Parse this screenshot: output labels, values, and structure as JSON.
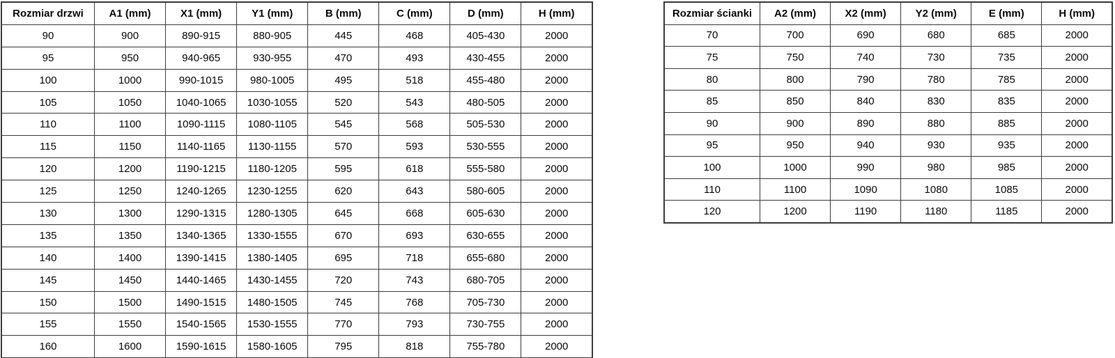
{
  "colors": {
    "background": "#ffffff",
    "border": "#3c3c3c",
    "text": "#0a0a0a"
  },
  "tables": [
    {
      "name": "door-size-table",
      "headers": [
        "Rozmiar drzwi",
        "A1 (mm)",
        "X1 (mm)",
        "Y1 (mm)",
        "B (mm)",
        "C (mm)",
        "D (mm)",
        "H (mm)"
      ],
      "rows": [
        [
          "90",
          "900",
          "890-915",
          "880-905",
          "445",
          "468",
          "405-430",
          "2000"
        ],
        [
          "95",
          "950",
          "940-965",
          "930-955",
          "470",
          "493",
          "430-455",
          "2000"
        ],
        [
          "100",
          "1000",
          "990-1015",
          "980-1005",
          "495",
          "518",
          "455-480",
          "2000"
        ],
        [
          "105",
          "1050",
          "1040-1065",
          "1030-1055",
          "520",
          "543",
          "480-505",
          "2000"
        ],
        [
          "110",
          "1100",
          "1090-1115",
          "1080-1105",
          "545",
          "568",
          "505-530",
          "2000"
        ],
        [
          "115",
          "1150",
          "1140-1165",
          "1130-1155",
          "570",
          "593",
          "530-555",
          "2000"
        ],
        [
          "120",
          "1200",
          "1190-1215",
          "1180-1205",
          "595",
          "618",
          "555-580",
          "2000"
        ],
        [
          "125",
          "1250",
          "1240-1265",
          "1230-1255",
          "620",
          "643",
          "580-605",
          "2000"
        ],
        [
          "130",
          "1300",
          "1290-1315",
          "1280-1305",
          "645",
          "668",
          "605-630",
          "2000"
        ],
        [
          "135",
          "1350",
          "1340-1365",
          "1330-1555",
          "670",
          "693",
          "630-655",
          "2000"
        ],
        [
          "140",
          "1400",
          "1390-1415",
          "1380-1405",
          "695",
          "718",
          "655-680",
          "2000"
        ],
        [
          "145",
          "1450",
          "1440-1465",
          "1430-1455",
          "720",
          "743",
          "680-705",
          "2000"
        ],
        [
          "150",
          "1500",
          "1490-1515",
          "1480-1505",
          "745",
          "768",
          "705-730",
          "2000"
        ],
        [
          "155",
          "1550",
          "1540-1565",
          "1530-1555",
          "770",
          "793",
          "730-755",
          "2000"
        ],
        [
          "160",
          "1600",
          "1590-1615",
          "1580-1605",
          "795",
          "818",
          "755-780",
          "2000"
        ]
      ]
    },
    {
      "name": "wall-size-table",
      "headers": [
        "Rozmiar ścianki",
        "A2 (mm)",
        "X2 (mm)",
        "Y2 (mm)",
        "E (mm)",
        "H (mm)"
      ],
      "rows": [
        [
          "70",
          "700",
          "690",
          "680",
          "685",
          "2000"
        ],
        [
          "75",
          "750",
          "740",
          "730",
          "735",
          "2000"
        ],
        [
          "80",
          "800",
          "790",
          "780",
          "785",
          "2000"
        ],
        [
          "85",
          "850",
          "840",
          "830",
          "835",
          "2000"
        ],
        [
          "90",
          "900",
          "890",
          "880",
          "885",
          "2000"
        ],
        [
          "95",
          "950",
          "940",
          "930",
          "935",
          "2000"
        ],
        [
          "100",
          "1000",
          "990",
          "980",
          "985",
          "2000"
        ],
        [
          "110",
          "1100",
          "1090",
          "1080",
          "1085",
          "2000"
        ],
        [
          "120",
          "1200",
          "1190",
          "1180",
          "1185",
          "2000"
        ]
      ]
    }
  ]
}
